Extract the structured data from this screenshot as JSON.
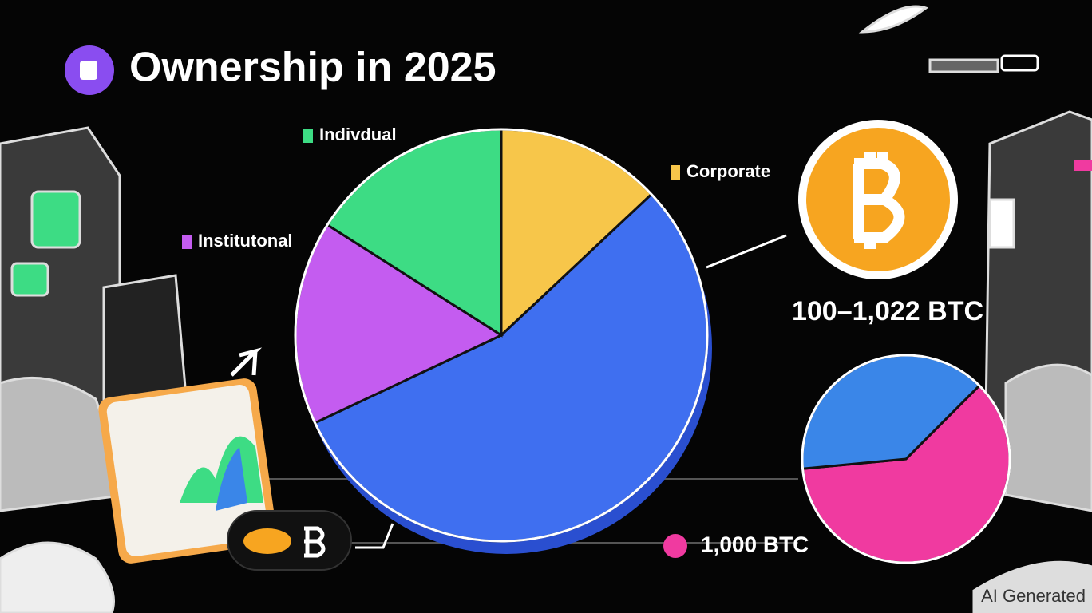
{
  "chart_data": [
    {
      "type": "pie",
      "title": "Ownership in 2025",
      "categories": [
        "Corporate",
        null,
        "Institutonal",
        "Indivdual"
      ],
      "values": [
        13,
        55,
        16,
        16
      ],
      "colors": [
        "#f7c64a",
        "#3f6ff0",
        "#c45cf0",
        "#3ddc84"
      ]
    },
    {
      "type": "pie",
      "categories": [
        null,
        null
      ],
      "values": [
        61,
        39
      ],
      "colors": [
        "#f03aa0",
        "#3a86e8"
      ],
      "annotations": [
        "100–1,022 BTC",
        "1,000 BTC"
      ]
    }
  ],
  "watermark": "AI Generated"
}
